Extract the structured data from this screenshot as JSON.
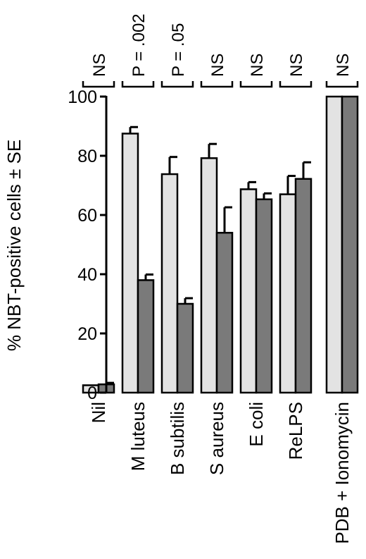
{
  "chart_data": {
    "type": "bar",
    "ylabel": "% NBT-positive cells ± SE",
    "ylim": [
      0,
      100
    ],
    "yticks": [
      0,
      20,
      40,
      60,
      80,
      100
    ],
    "grid": false,
    "categories": [
      "Nil",
      "M luteus",
      "B subtilis",
      "S aureus",
      "E coli",
      "ReLPS",
      "PDB + Ionomycin"
    ],
    "significance": [
      "NS",
      "P = .002",
      "P = .05",
      "NS",
      "NS",
      "NS",
      "NS"
    ],
    "series": [
      {
        "color": "#e3e3e3",
        "values": [
          2.5,
          87.5,
          73.8,
          79.2,
          68.7,
          67,
          100
        ],
        "errors": [
          0,
          2.2,
          5.8,
          4.8,
          2.4,
          6.2,
          0
        ]
      },
      {
        "color": "#7a7a7a",
        "values": [
          2.8,
          38,
          30,
          54,
          65.3,
          72.2,
          100
        ],
        "errors": [
          0.5,
          1.9,
          1.9,
          8.6,
          2,
          5.6,
          0
        ]
      }
    ]
  }
}
